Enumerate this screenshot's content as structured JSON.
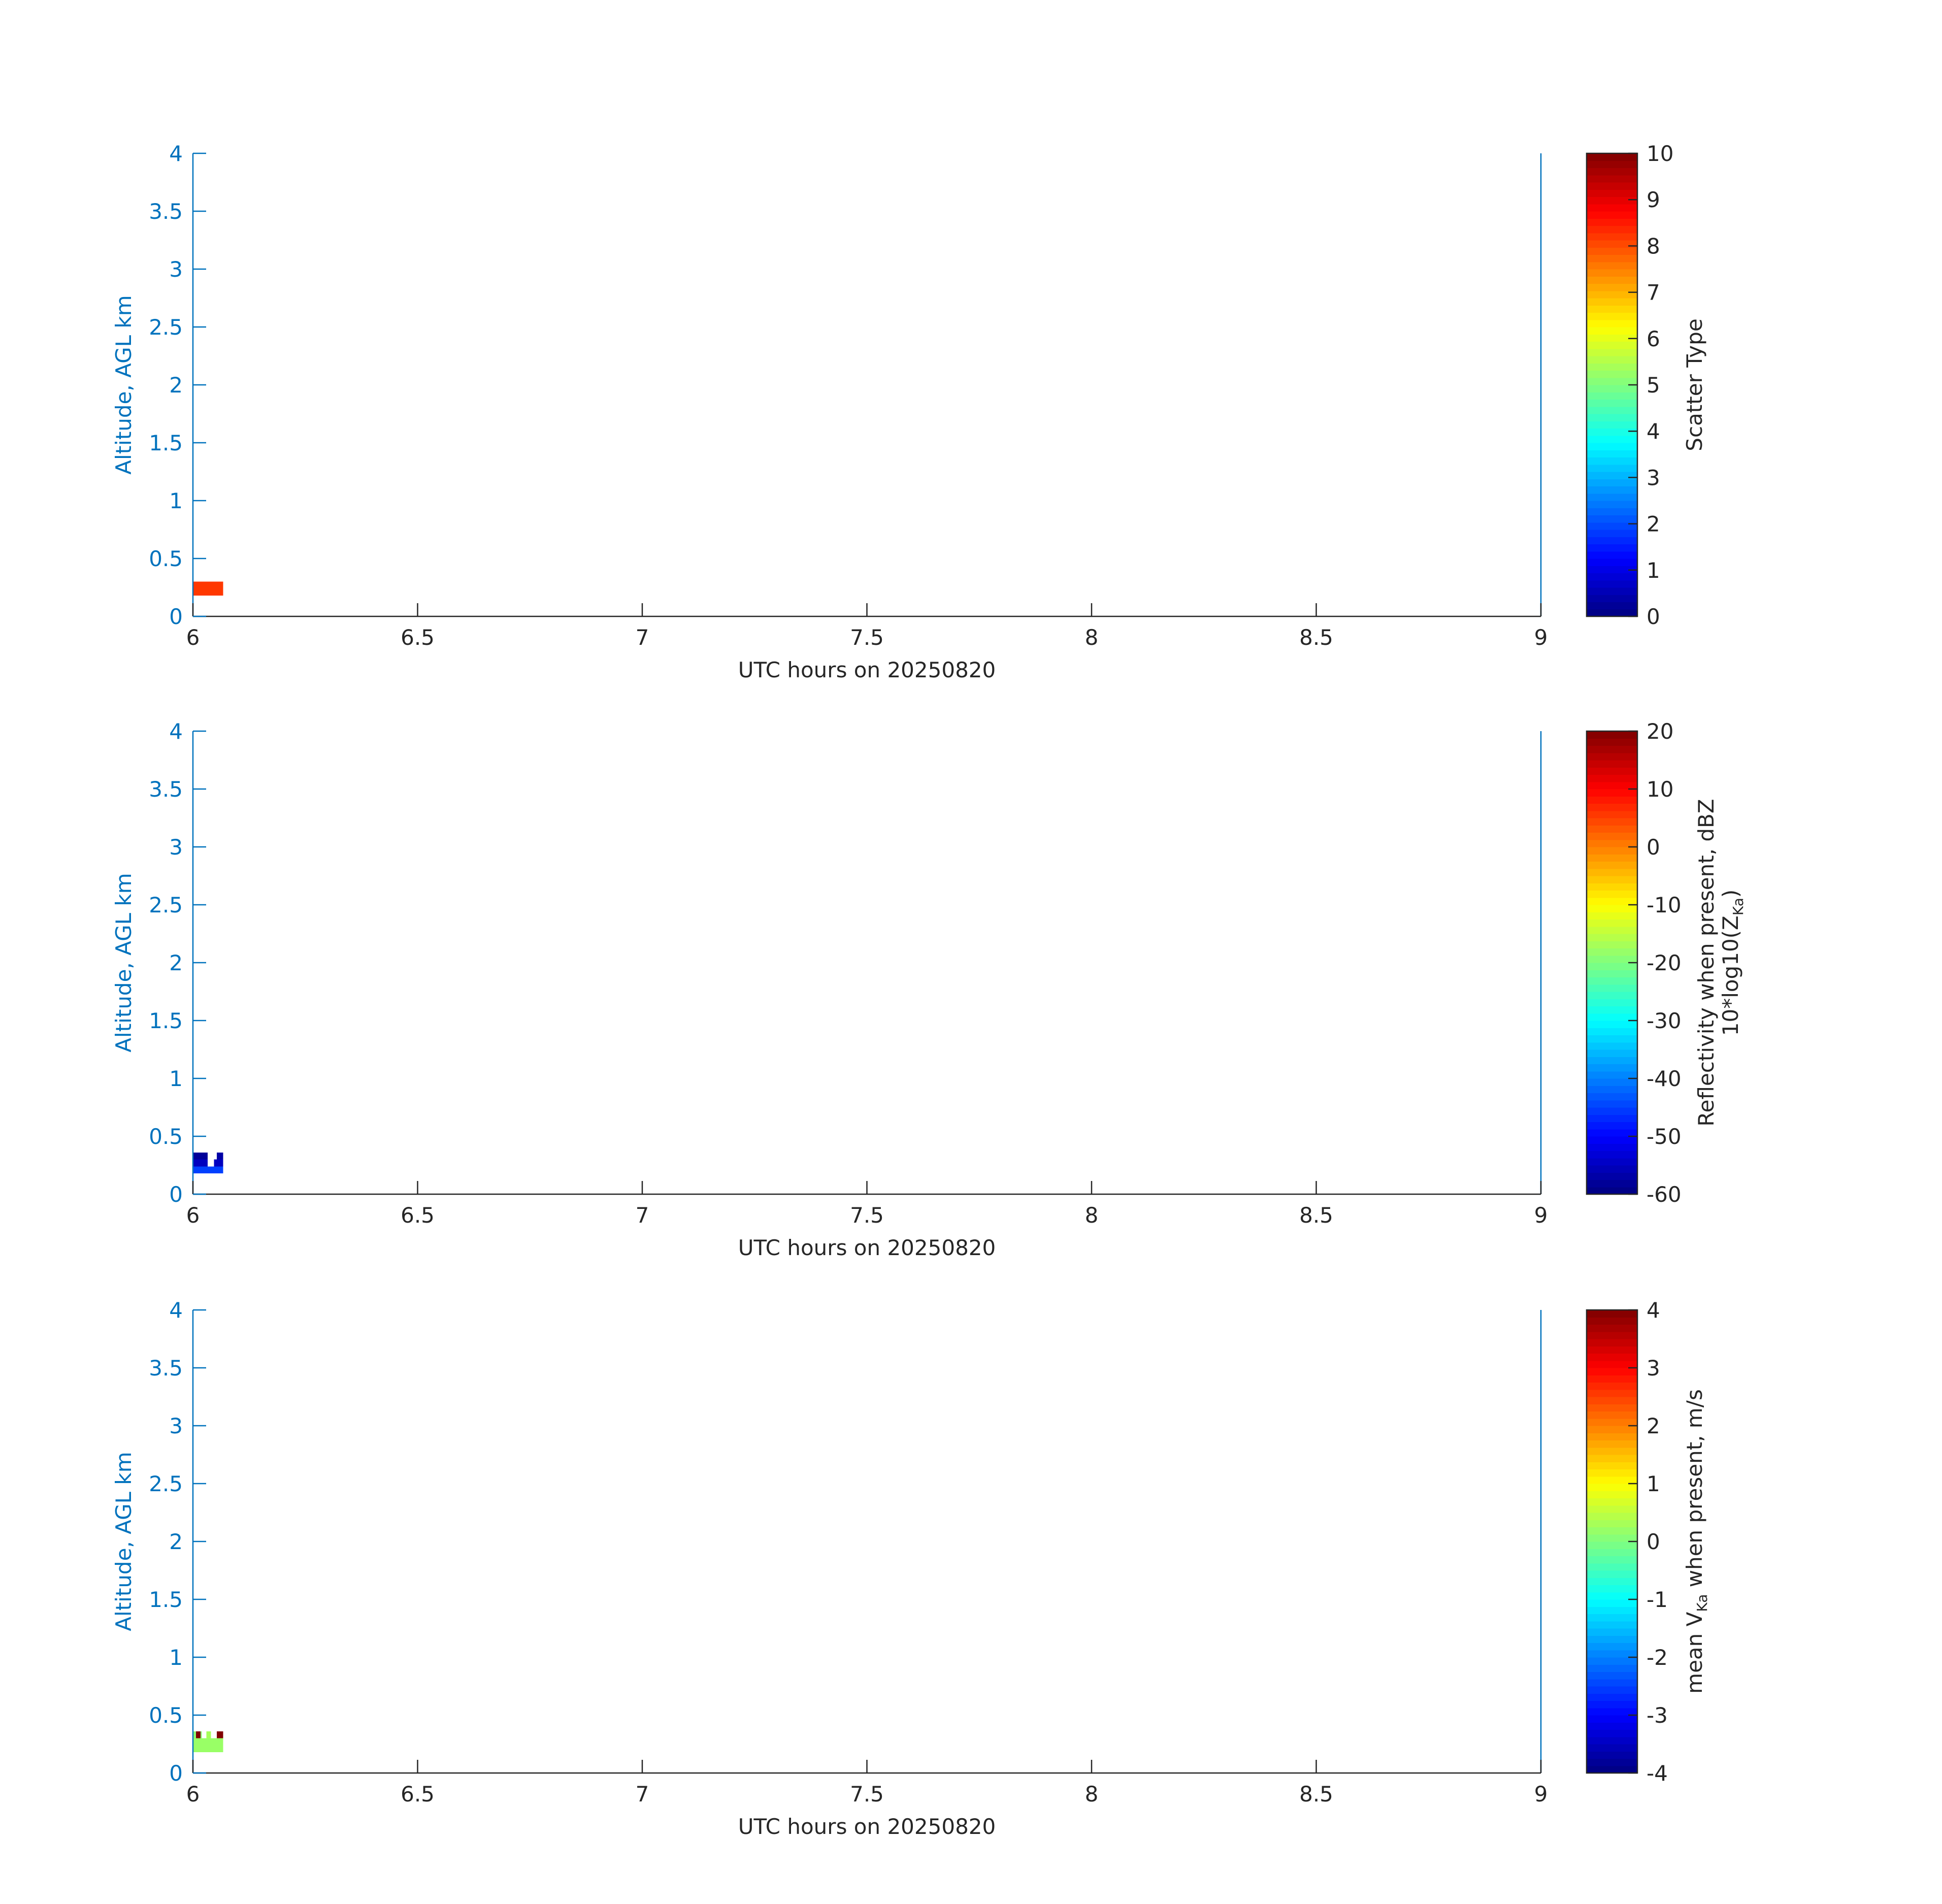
{
  "colors": {
    "axis_left": "#0072BD",
    "axis_bottom": "#262626",
    "text_dark": "#262626",
    "background": "#ffffff"
  },
  "chart_data": [
    {
      "type": "heatmap",
      "panel": "scatter-type",
      "xlabel": "UTC hours on 20250820",
      "ylabel": "Altitude, AGL km",
      "xlim": [
        6,
        9
      ],
      "ylim": [
        0,
        4
      ],
      "xticks": [
        "6",
        "6.5",
        "7",
        "7.5",
        "8",
        "8.5",
        "9"
      ],
      "yticks": [
        "0",
        "0.5",
        "1",
        "1.5",
        "2",
        "2.5",
        "3",
        "3.5",
        "4"
      ],
      "colorbar": {
        "label": "Scatter Type",
        "label_sub": "",
        "label_line2": "",
        "clim": [
          0,
          10
        ],
        "ticks": [
          "0",
          "1",
          "2",
          "3",
          "4",
          "5",
          "6",
          "7",
          "8",
          "9",
          "10"
        ],
        "colormap": "jet"
      },
      "cells": [
        {
          "x0": 6.0,
          "x1": 6.067,
          "y0": 0.18,
          "y1": 0.3,
          "value": 8.2
        }
      ]
    },
    {
      "type": "heatmap",
      "panel": "reflectivity",
      "xlabel": "UTC hours on 20250820",
      "ylabel": "Altitude, AGL km",
      "xlim": [
        6,
        9
      ],
      "ylim": [
        0,
        4
      ],
      "xticks": [
        "6",
        "6.5",
        "7",
        "7.5",
        "8",
        "8.5",
        "9"
      ],
      "yticks": [
        "0",
        "0.5",
        "1",
        "1.5",
        "2",
        "2.5",
        "3",
        "3.5",
        "4"
      ],
      "colorbar": {
        "label": "Reflectivity when present, dBZ",
        "label_line2": "10*log10(Z",
        "label_sub": "Ka",
        "label_tail": ")",
        "clim": [
          -60,
          20
        ],
        "ticks": [
          "-60",
          "-50",
          "-40",
          "-30",
          "-20",
          "-10",
          "0",
          "10",
          "20"
        ],
        "colormap": "jet"
      },
      "cells": [
        {
          "x0": 6.0,
          "x1": 6.067,
          "y0": 0.18,
          "y1": 0.24,
          "value": -45
        },
        {
          "x0": 6.0,
          "x1": 6.033,
          "y0": 0.24,
          "y1": 0.3,
          "value": -55
        },
        {
          "x0": 6.047,
          "x1": 6.067,
          "y0": 0.24,
          "y1": 0.3,
          "value": -55
        },
        {
          "x0": 6.0,
          "x1": 6.033,
          "y0": 0.3,
          "y1": 0.36,
          "value": -58
        },
        {
          "x0": 6.053,
          "x1": 6.067,
          "y0": 0.3,
          "y1": 0.36,
          "value": -57
        }
      ]
    },
    {
      "type": "heatmap",
      "panel": "velocity",
      "xlabel": "UTC hours on 20250820",
      "ylabel": "Altitude, AGL km",
      "xlim": [
        6,
        9
      ],
      "ylim": [
        0,
        4
      ],
      "xticks": [
        "6",
        "6.5",
        "7",
        "7.5",
        "8",
        "8.5",
        "9"
      ],
      "yticks": [
        "0",
        "0.5",
        "1",
        "1.5",
        "2",
        "2.5",
        "3",
        "3.5",
        "4"
      ],
      "colorbar": {
        "label": "mean V",
        "label_sub": "Ka",
        "label_tail": " when present, m/s",
        "label_line2": "",
        "clim": [
          -4,
          4
        ],
        "ticks": [
          "-4",
          "-3",
          "-2",
          "-1",
          "0",
          "1",
          "2",
          "3",
          "4"
        ],
        "colormap": "jet"
      },
      "cells": [
        {
          "x0": 6.0,
          "x1": 6.067,
          "y0": 0.18,
          "y1": 0.3,
          "value": 0.2
        },
        {
          "x0": 6.0,
          "x1": 6.02,
          "y0": 0.3,
          "y1": 0.36,
          "value": 0.1
        },
        {
          "x0": 6.007,
          "x1": 6.017,
          "y0": 0.3,
          "y1": 0.36,
          "value": 4.0
        },
        {
          "x0": 6.03,
          "x1": 6.04,
          "y0": 0.3,
          "y1": 0.36,
          "value": 0.3
        },
        {
          "x0": 6.053,
          "x1": 6.067,
          "y0": 0.3,
          "y1": 0.36,
          "value": 4.0
        }
      ]
    }
  ]
}
